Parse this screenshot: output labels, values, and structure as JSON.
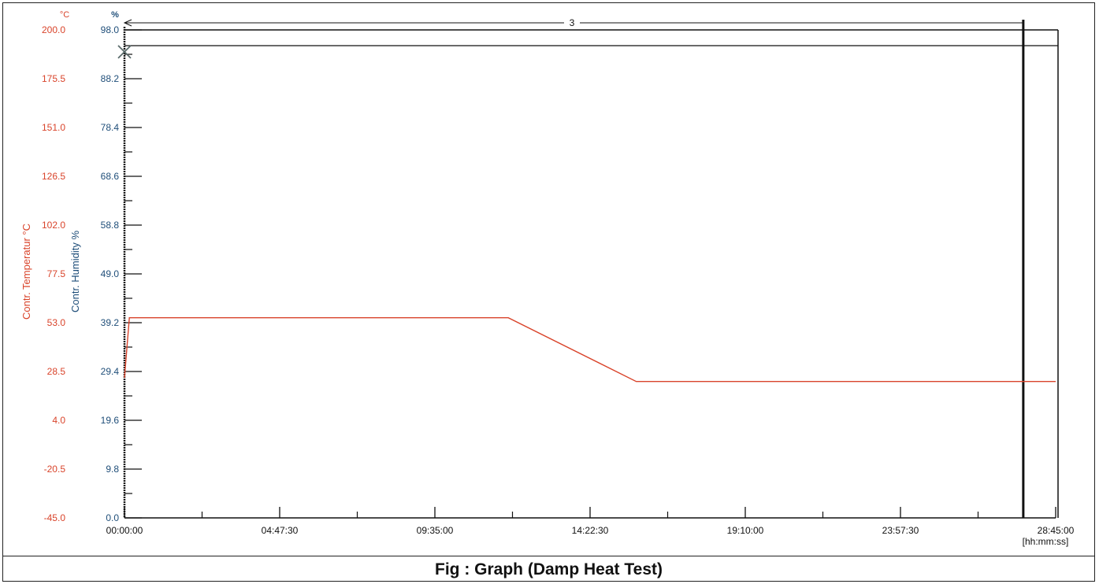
{
  "caption": "Fig : Graph (Damp Heat Test)",
  "chart_data": {
    "type": "line",
    "title": "",
    "xlabel": "",
    "x_unit_label": "[hh:mm:ss]",
    "x_ticks": [
      "00:00:00",
      "04:47:30",
      "09:35:00",
      "14:22:30",
      "19:10:00",
      "23:57:30",
      "28:45:00"
    ],
    "xlim_hours": [
      0,
      28.75
    ],
    "y_left": {
      "label": "Contr. Temperatur °C",
      "unit": "°C",
      "ticks": [
        "200.0",
        "175.5",
        "151.0",
        "126.5",
        "102.0",
        "77.5",
        "53.0",
        "28.5",
        "4.0",
        "-20.5",
        "-45.0"
      ],
      "range": [
        -45.0,
        200.0
      ]
    },
    "y_right": {
      "label": "Contr. Humidity %",
      "unit": "%",
      "ticks": [
        "98.0",
        "88.2",
        "78.4",
        "68.6",
        "58.8",
        "49.0",
        "39.2",
        "29.4",
        "19.6",
        "9.8",
        "0.0"
      ],
      "range": [
        0.0,
        98.0
      ]
    },
    "series": [
      {
        "axis": "left",
        "color": "#d9442b",
        "points_hours": [
          [
            0,
            25.3
          ],
          [
            0.15,
            55.5
          ],
          [
            11.85,
            55.5
          ],
          [
            15.8,
            23.5
          ],
          [
            28.75,
            23.5
          ]
        ]
      }
    ],
    "markers": [
      {
        "type": "x",
        "x_hours": 0,
        "y_left": 189
      }
    ],
    "annotation": {
      "label": "3",
      "from_hours": 0,
      "to_hours": 27.75
    },
    "vertical_line_hours": 27.75,
    "grid": false,
    "colors": {
      "temperature": "#d9442b",
      "humidity": "#1f4e79",
      "axis": "#111111"
    }
  }
}
